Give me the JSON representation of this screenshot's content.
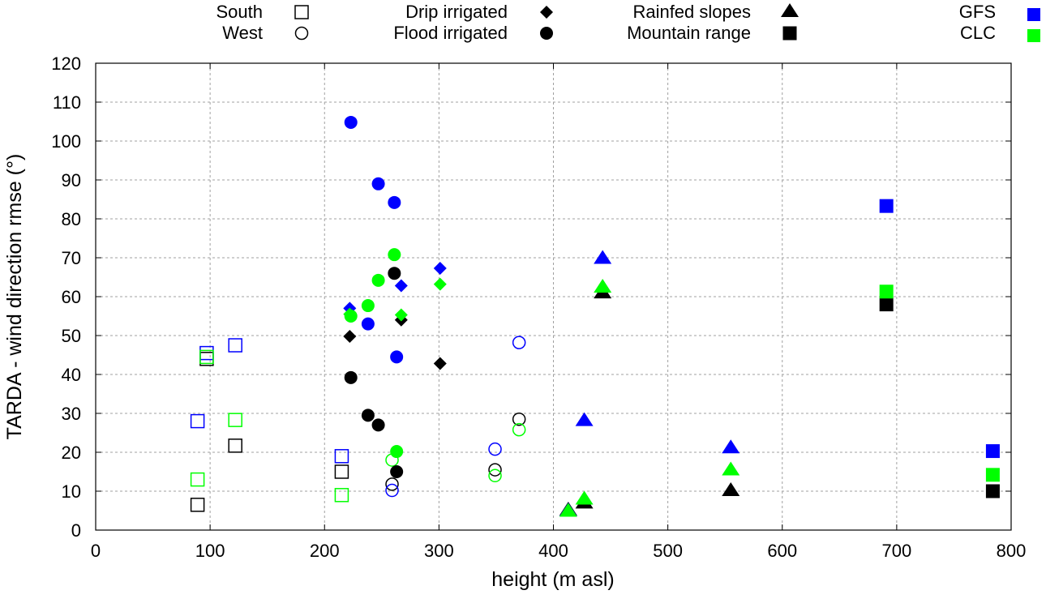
{
  "chart_data": {
    "type": "scatter",
    "title": "",
    "xlabel": "height (m asl)",
    "ylabel": "TARDA - wind direction rmse (°)",
    "xlim": [
      0,
      800
    ],
    "ylim": [
      0,
      120
    ],
    "grid": true,
    "legend_placement": "top",
    "x_ticks": [
      "0",
      "100",
      "200",
      "300",
      "400",
      "500",
      "600",
      "700",
      "800"
    ],
    "y_ticks": [
      "0",
      "10",
      "20",
      "30",
      "40",
      "50",
      "60",
      "70",
      "80",
      "90",
      "100",
      "110",
      "120"
    ],
    "colors": {
      "TARDA": "#000000",
      "GFS": "#0000ff",
      "CLC": "#00ff00"
    },
    "legend_sites": [
      {
        "label": "South",
        "marker": "open-square"
      },
      {
        "label": "West",
        "marker": "open-circle"
      },
      {
        "label": "Drip irrigated",
        "marker": "filled-diamond"
      },
      {
        "label": "Flood irrigated",
        "marker": "filled-circle"
      },
      {
        "label": "Rainfed slopes",
        "marker": "filled-triangle"
      },
      {
        "label": "Mountain range",
        "marker": "filled-square"
      }
    ],
    "legend_models": [
      {
        "label": "GFS",
        "color": "#0000ff"
      },
      {
        "label": "CLC",
        "color": "#00ff00"
      }
    ],
    "series": [
      {
        "name": "South",
        "marker": "open-square",
        "x": [
          89,
          97,
          122,
          215
        ],
        "TARDA": [
          6.5,
          44,
          21.7,
          15
        ],
        "GFS": [
          28,
          45.5,
          47.5,
          19
        ],
        "CLC": [
          13,
          44.5,
          28.3,
          9
        ]
      },
      {
        "name": "West",
        "marker": "open-circle",
        "x": [
          259,
          349,
          370
        ],
        "TARDA": [
          11.8,
          15.5,
          28.5
        ],
        "GFS": [
          10.2,
          20.8,
          48.2
        ],
        "CLC": [
          18,
          14,
          25.8
        ]
      },
      {
        "name": "Drip irrigated",
        "marker": "filled-diamond",
        "x": [
          222,
          267,
          301
        ],
        "TARDA": [
          49.8,
          54,
          42.8
        ],
        "GFS": [
          57,
          62.8,
          67.3
        ],
        "CLC": [
          55.5,
          55.3,
          63.2
        ]
      },
      {
        "name": "Flood irrigated",
        "marker": "filled-circle",
        "x": [
          223,
          238,
          247,
          261,
          263
        ],
        "TARDA": [
          39.2,
          29.5,
          27,
          66,
          15
        ],
        "GFS": [
          104.8,
          53,
          89,
          84.2,
          44.5
        ],
        "CLC": [
          55,
          57.7,
          64.2,
          70.8,
          20.2
        ]
      },
      {
        "name": "Rainfed slopes",
        "marker": "filled-triangle",
        "x": [
          413,
          427,
          443,
          555
        ],
        "TARDA": [
          5,
          6.8,
          60.8,
          10
        ],
        "GFS": [
          4.8,
          28,
          69.7,
          21
        ],
        "CLC": [
          4.7,
          7.8,
          62.3,
          15.3
        ]
      },
      {
        "name": "Mountain range",
        "marker": "filled-square",
        "x": [
          691,
          784
        ],
        "TARDA": [
          58,
          10
        ],
        "GFS": [
          83.3,
          20.3
        ],
        "CLC": [
          61.3,
          14.2
        ]
      }
    ]
  }
}
